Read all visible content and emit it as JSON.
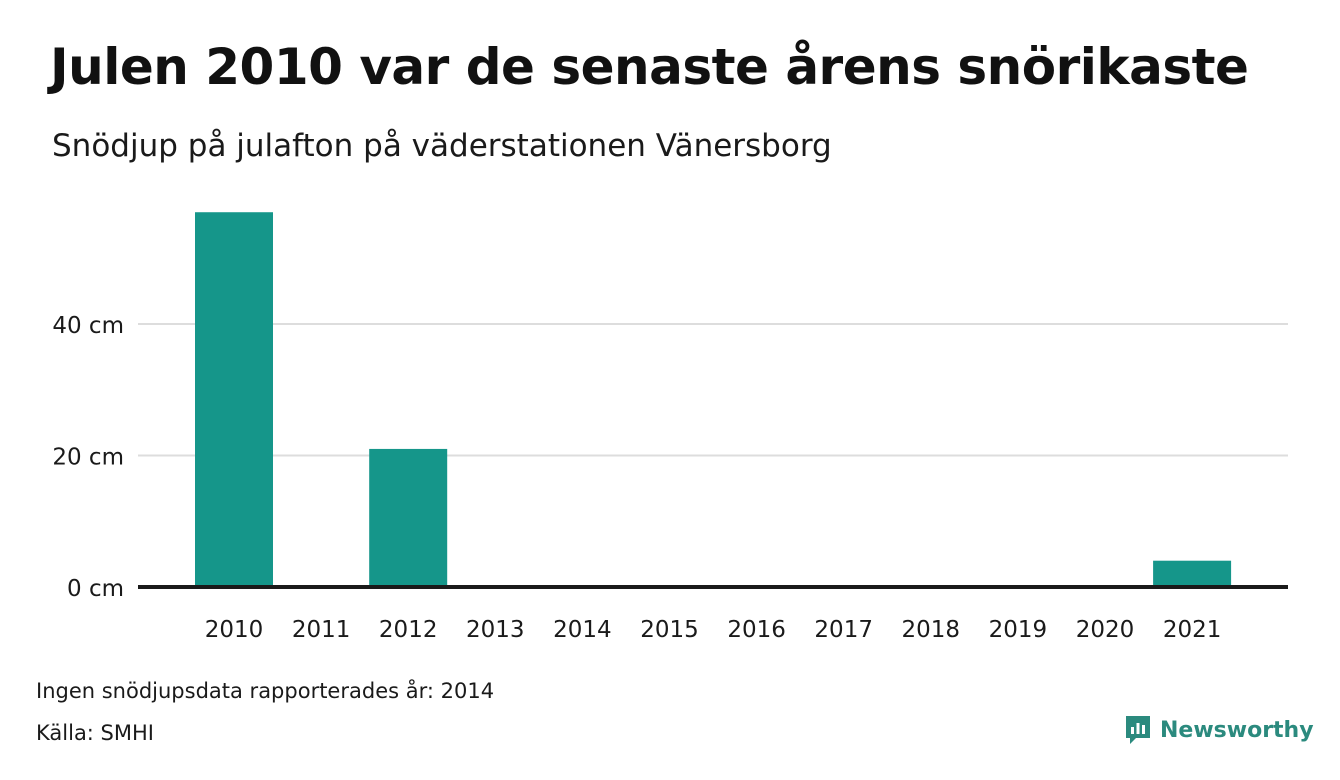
{
  "title": "Julen 2010 var de senaste årens snörikaste",
  "subtitle": "Snödjup på julafton på väderstationen Vänersborg",
  "footnote": "Ingen snödjupsdata rapporterades år: 2014",
  "source": "Källa: SMHI",
  "brand": {
    "name": "Newsworthy",
    "icon": "newsworthy-logo-icon",
    "color": "#2b8a7e"
  },
  "chart_data": {
    "type": "bar",
    "categories": [
      "2010",
      "2011",
      "2012",
      "2013",
      "2014",
      "2015",
      "2016",
      "2017",
      "2018",
      "2019",
      "2020",
      "2021"
    ],
    "values": [
      57,
      0,
      21,
      0,
      null,
      0,
      0,
      0,
      0,
      0,
      0,
      4
    ],
    "ylim": [
      0,
      60
    ],
    "yticks": [
      0,
      20,
      40
    ],
    "ytick_labels": [
      "0 cm",
      "20 cm",
      "40 cm"
    ],
    "grid": true,
    "colors": {
      "bar": "#15968a",
      "grid": "#dddddd",
      "baseline": "#1a1a1a"
    }
  }
}
